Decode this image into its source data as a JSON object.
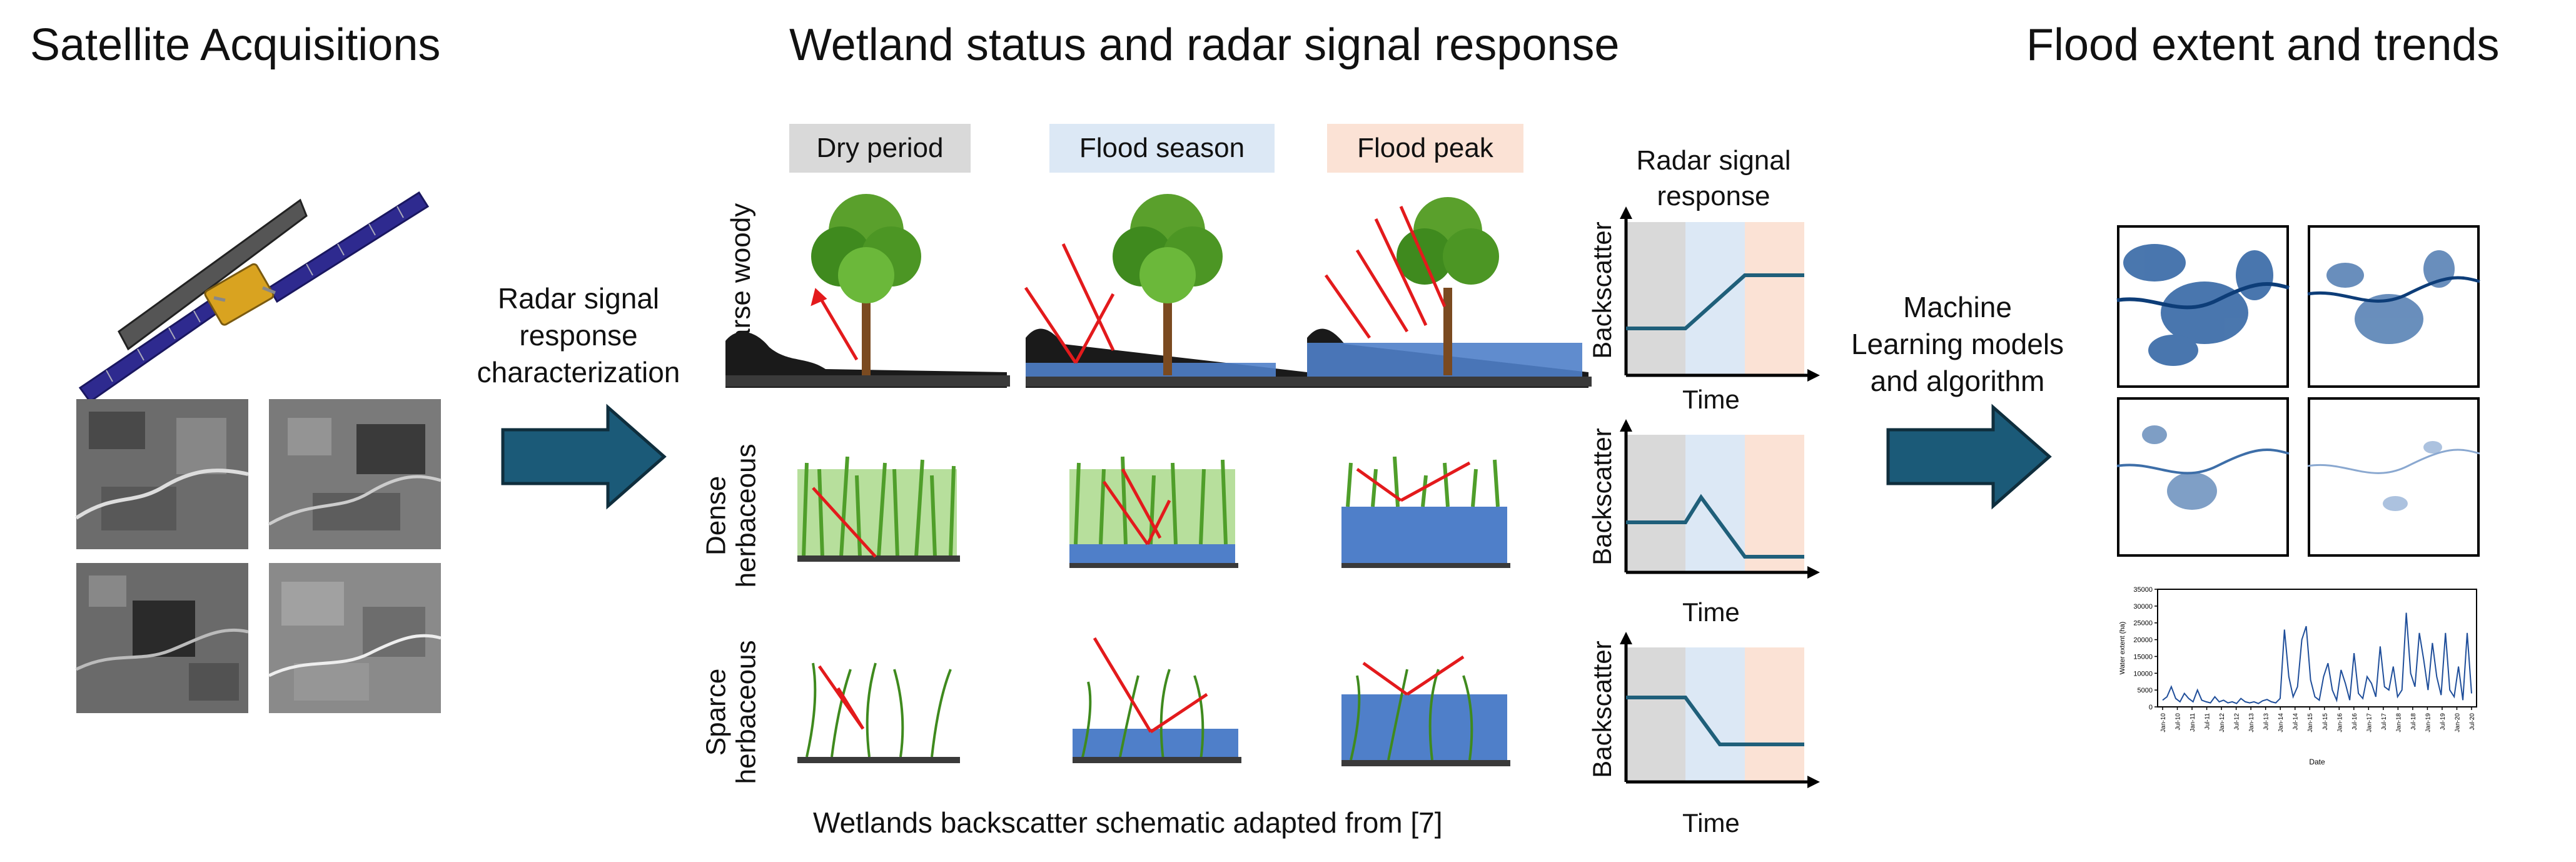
{
  "sections": {
    "satellite": "Satellite Acquisitions",
    "wetland": "Wetland status and radar signal response",
    "flood": "Flood extent and trends"
  },
  "arrow_labels": {
    "characterization": [
      "Radar signal",
      "response",
      "characterization"
    ],
    "ml": [
      "Machine",
      "Learning models",
      "and algorithm"
    ]
  },
  "periods": [
    "Dry period",
    "Flood season",
    "Flood peak"
  ],
  "rows": [
    [
      "Sparse woody"
    ],
    [
      "Dense",
      "herbaceous"
    ],
    [
      "Sparce",
      "herbaceous"
    ]
  ],
  "radar_panel_title": [
    "Radar signal",
    "response"
  ],
  "axis": {
    "y": "Backscatter",
    "x": "Time"
  },
  "caption": "Wetlands backscatter schematic adapted from [7]",
  "colors": {
    "dry": "#d9d9d9",
    "flood_season": "#dce8f5",
    "flood_peak": "#fbe2d5",
    "arrow_blue": "#1b5a78",
    "water": "#4f7fc9",
    "line": "#1f5f7a",
    "red": "#e31a1c"
  },
  "chart_data": {
    "type": "line",
    "title": "",
    "xlabel": "Date",
    "ylabel": "Water extent (ha)",
    "ylim": [
      0,
      35000
    ],
    "yticks": [
      0,
      5000,
      10000,
      15000,
      20000,
      25000,
      30000,
      35000
    ],
    "xticks": [
      "Jan-10",
      "Jul-10",
      "Jan-11",
      "Jul-11",
      "Jan-12",
      "Jul-12",
      "Jan-13",
      "Jul-13",
      "Jan-14",
      "Jul-14",
      "Jan-15",
      "Jul-15",
      "Jan-16",
      "Jul-16",
      "Jan-17",
      "Jul-17",
      "Jan-18",
      "Jul-18",
      "Jan-19",
      "Jul-19",
      "Jan-20",
      "Jul-20"
    ],
    "values": [
      2000,
      3000,
      6000,
      2500,
      1500,
      4000,
      2500,
      1500,
      5000,
      2000,
      1500,
      1200,
      3000,
      1500,
      2000,
      1200,
      1500,
      1000,
      2500,
      1500,
      1200,
      1500,
      1000,
      1800,
      2200,
      1500,
      1200,
      2500,
      23000,
      9000,
      3000,
      6000,
      20000,
      24000,
      8000,
      3000,
      2000,
      9000,
      13000,
      5000,
      2000,
      11000,
      7000,
      2000,
      16000,
      4000,
      2500,
      9000,
      7000,
      3000,
      18000,
      6000,
      5000,
      12000,
      3000,
      5000,
      28000,
      10000,
      6000,
      22000,
      14000,
      5000,
      19000,
      9000,
      3500,
      22000,
      5000,
      3000,
      12000,
      2000,
      22000,
      4000
    ]
  }
}
